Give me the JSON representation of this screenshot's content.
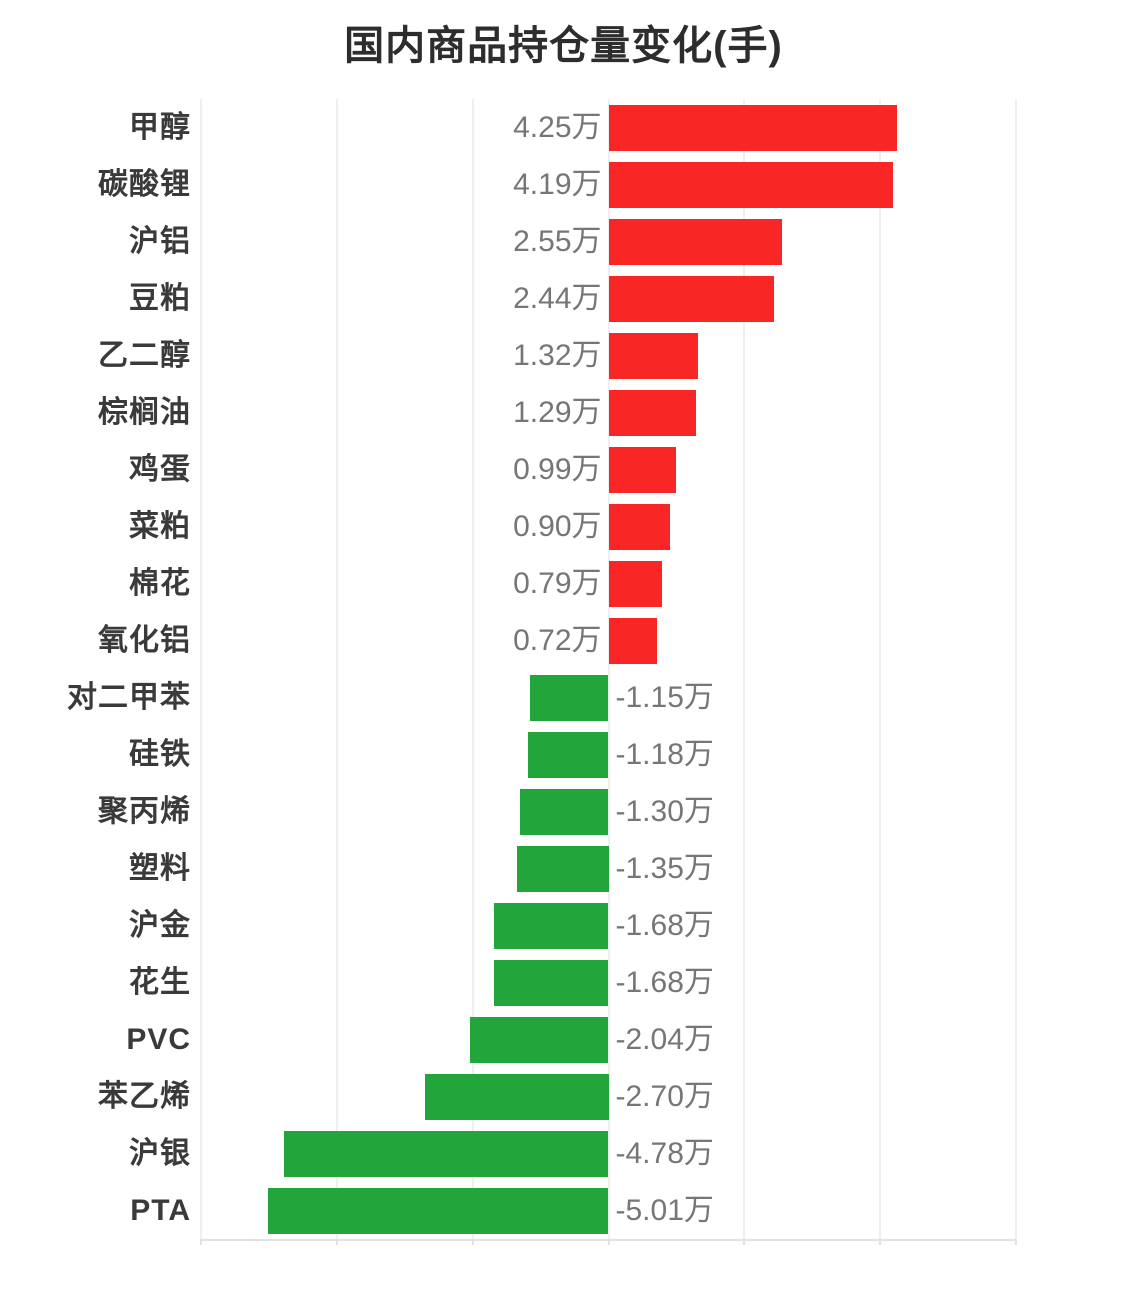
{
  "title": "国内商品持仓量变化(手)",
  "colors": {
    "positive_bar": "#f92626",
    "negative_bar": "#22a63c",
    "title_text": "#2d2d2d",
    "category_text": "#3a3a3a",
    "value_text": "#767676",
    "gridline": "#efefef",
    "axis_line": "#e3e3e3",
    "background": "#ffffff"
  },
  "chart_data": {
    "type": "bar",
    "orientation": "horizontal",
    "title": "国内商品持仓量变化(手)",
    "unit": "万手",
    "categories": [
      "甲醇",
      "碳酸锂",
      "沪铝",
      "豆粕",
      "乙二醇",
      "棕榈油",
      "鸡蛋",
      "菜粕",
      "棉花",
      "氧化铝",
      "对二甲苯",
      "硅铁",
      "聚丙烯",
      "塑料",
      "沪金",
      "花生",
      "PVC",
      "苯乙烯",
      "沪银",
      "PTA"
    ],
    "values": [
      4.25,
      4.19,
      2.55,
      2.44,
      1.32,
      1.29,
      0.99,
      0.9,
      0.79,
      0.72,
      -1.15,
      -1.18,
      -1.3,
      -1.35,
      -1.68,
      -1.68,
      -2.04,
      -2.7,
      -4.78,
      -5.01
    ],
    "value_labels": [
      "4.25万",
      "4.19万",
      "2.55万",
      "2.44万",
      "1.32万",
      "1.29万",
      "0.99万",
      "0.90万",
      "0.79万",
      "0.72万",
      "-1.15万",
      "-1.18万",
      "-1.30万",
      "-1.35万",
      "-1.68万",
      "-1.68万",
      "-2.04万",
      "-2.70万",
      "-4.78万",
      "-5.01万"
    ],
    "xlim": [
      -6,
      6
    ],
    "grid_step": 2,
    "grid": "on",
    "legend": "none",
    "x_tick_labels_shown": false,
    "positive_color": "#f92626",
    "negative_color": "#22a63c"
  }
}
